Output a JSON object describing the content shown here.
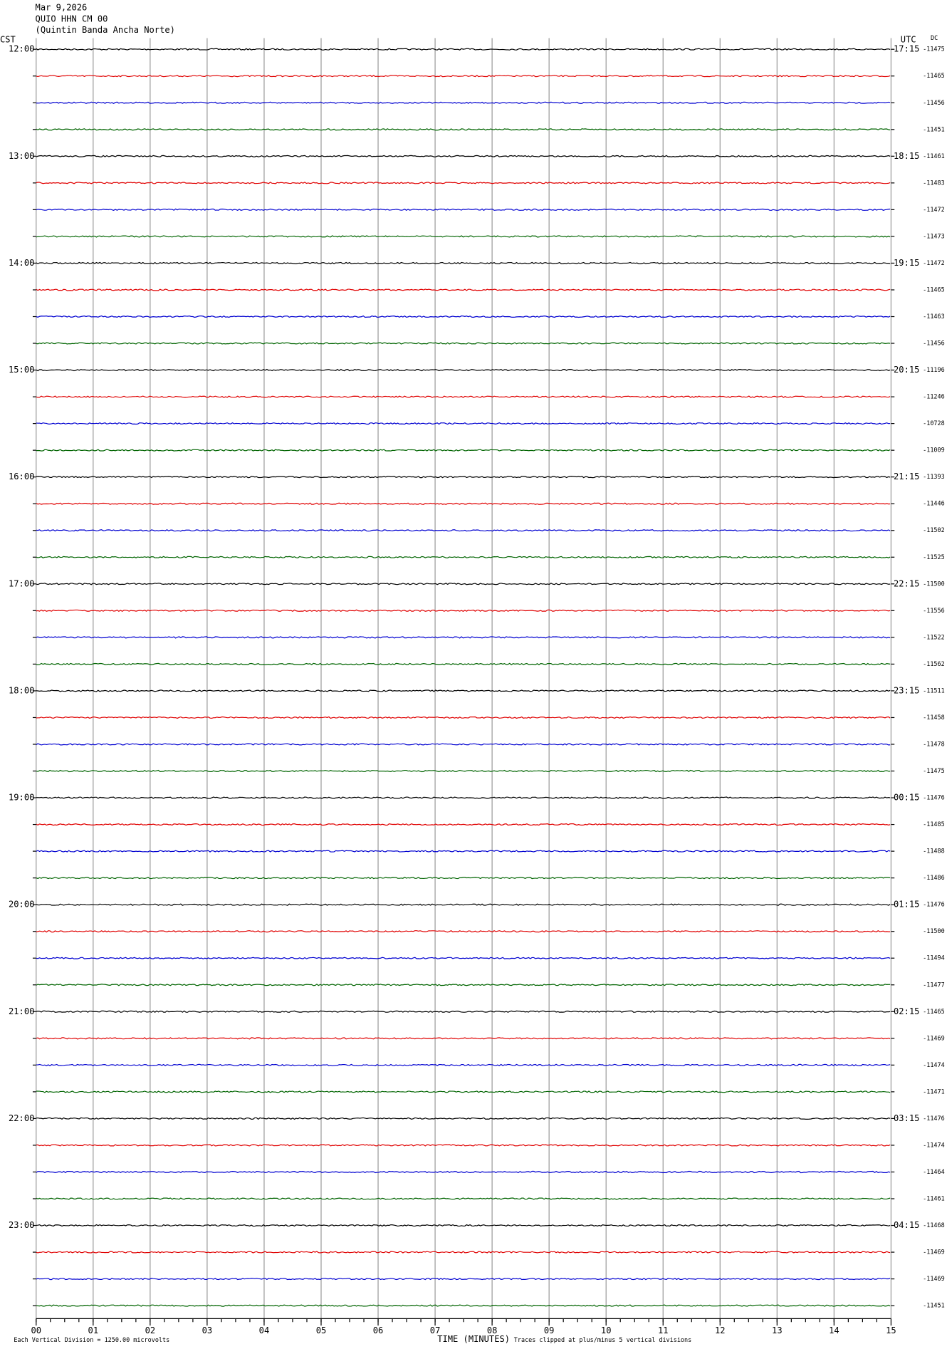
{
  "header": {
    "date": "Mar 9,2026",
    "station": "QUIO HHN CM 00",
    "location": "(Quintin Banda Ancha Norte)"
  },
  "chart_data": {
    "type": "helicorder",
    "left_axis_label": "CST",
    "right_axis_label": "UTC",
    "dc_label": "DC",
    "colors": [
      "#000000",
      "#e00000",
      "#0000d0",
      "#006400"
    ],
    "hour_labels": [
      "12:00",
      "13:00",
      "14:00",
      "15:00",
      "16:00",
      "17:00",
      "18:00",
      "19:00",
      "20:00",
      "21:00",
      "22:00",
      "23:00"
    ],
    "utc_labels": [
      "17:15",
      "18:15",
      "19:15",
      "20:15",
      "21:15",
      "22:15",
      "23:15",
      "00:15",
      "01:15",
      "02:15",
      "03:15",
      "04:15"
    ],
    "dc_values": [
      -11475,
      -11465,
      -11456,
      -11451,
      -11461,
      -11483,
      -11472,
      -11473,
      -11472,
      -11465,
      -11463,
      -11456,
      -11196,
      -11246,
      -10728,
      -11009,
      -11393,
      -11446,
      -11502,
      -11525,
      -11500,
      -11556,
      -11522,
      -11562,
      -11511,
      -11458,
      -11478,
      -11475,
      -11476,
      -11485,
      -11488,
      -11486,
      -11476,
      -11500,
      -11494,
      -11477,
      -11465,
      -11469,
      -11474,
      -11471,
      -11476,
      -11474,
      -11464,
      -11461,
      -11468,
      -11469,
      -11469,
      -11451
    ],
    "xlim": [
      0,
      15
    ],
    "xticks": [
      {
        "value": 0,
        "label": "00"
      },
      {
        "value": 1,
        "label": "01"
      },
      {
        "value": 2,
        "label": "02"
      },
      {
        "value": 3,
        "label": "03"
      },
      {
        "value": 4,
        "label": "04"
      },
      {
        "value": 5,
        "label": "05"
      },
      {
        "value": 6,
        "label": "06"
      },
      {
        "value": 7,
        "label": "07"
      },
      {
        "value": 8,
        "label": "08"
      },
      {
        "value": 9,
        "label": "09"
      },
      {
        "value": 10,
        "label": "10"
      },
      {
        "value": 11,
        "label": "11"
      },
      {
        "value": 12,
        "label": "12"
      },
      {
        "value": 13,
        "label": "13"
      },
      {
        "value": 14,
        "label": "14"
      },
      {
        "value": 15,
        "label": "15"
      }
    ],
    "xlabel": "TIME (MINUTES)",
    "footer_left": "Each Vertical Division = 1250.00 microvolts",
    "footer_right": "Traces clipped at plus/minus 5 vertical divisions"
  }
}
